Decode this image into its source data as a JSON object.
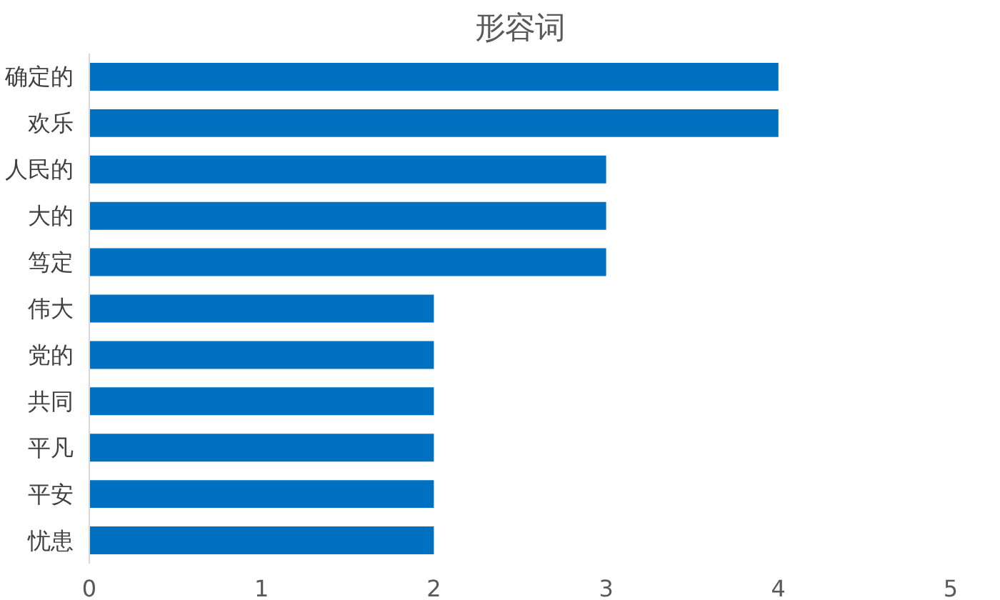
{
  "chart_data": {
    "type": "bar",
    "orientation": "horizontal",
    "title": "形容词",
    "categories": [
      "确定的",
      "欢乐",
      "人民的",
      "大的",
      "笃定",
      "伟大",
      "党的",
      "共同",
      "平凡",
      "平安",
      "忧患"
    ],
    "values": [
      4,
      4,
      3,
      3,
      3,
      2,
      2,
      2,
      2,
      2,
      2
    ],
    "color": "#0070c0",
    "xlim": [
      0,
      5
    ],
    "xticks": [
      0,
      1,
      2,
      3,
      4,
      5
    ],
    "grid": false
  }
}
